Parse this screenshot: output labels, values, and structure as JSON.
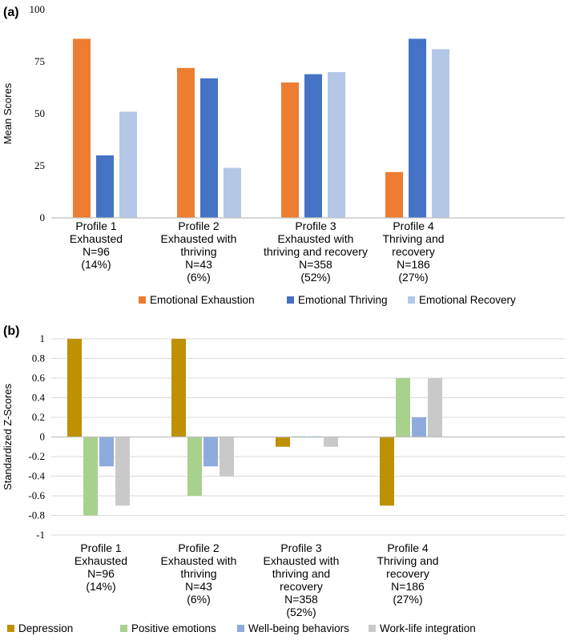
{
  "colors": {
    "emotional_exhaustion": "#ED7D31",
    "emotional_thriving": "#4472C4",
    "emotional_recovery": "#B4C7E7",
    "depression": "#BF9000",
    "positive_emotions": "#A9D18E",
    "well_being_behaviors": "#8FAADC",
    "work_life_integration": "#C9C9C9",
    "near_zero_mark": "#5BC8C8",
    "gridline": "#D9D9D9",
    "axis": "#BFBFBF"
  },
  "chart_data": [
    {
      "panel": "(a)",
      "type": "bar",
      "ylabel": "Mean Scores",
      "ylim": [
        0,
        100
      ],
      "yticks": [
        "0",
        "25",
        "50",
        "75",
        "100"
      ],
      "grid": false,
      "legend_position": "bottom",
      "categories": [
        [
          "Profile 1",
          "Exhausted",
          "N=96",
          "(14%)"
        ],
        [
          "Profile 2",
          "Exhausted with",
          "thriving",
          "N=43",
          "(6%)"
        ],
        [
          "Profile 3",
          "Exhausted with",
          "thriving and recovery",
          "N=358",
          "(52%)"
        ],
        [
          "Profile 4",
          "Thriving and",
          "recovery",
          "N=186",
          "(27%)"
        ]
      ],
      "series": [
        {
          "name": "Emotional Exhaustion",
          "color_key": "emotional_exhaustion",
          "values": [
            86,
            72,
            65,
            22
          ]
        },
        {
          "name": "Emotional Thriving",
          "color_key": "emotional_thriving",
          "values": [
            30,
            67,
            69,
            86
          ]
        },
        {
          "name": "Emotional Recovery",
          "color_key": "emotional_recovery",
          "values": [
            51,
            24,
            70,
            81
          ]
        }
      ]
    },
    {
      "panel": "(b)",
      "type": "bar",
      "ylabel": "Standardized Z-Scores",
      "ylim": [
        -1,
        1
      ],
      "yticks": [
        "1",
        "0.8",
        "0.6",
        "0.4",
        "0.2",
        "0",
        "-0.2",
        "-0.4",
        "-0.6",
        "-0.8",
        "-1"
      ],
      "grid": true,
      "legend_position": "bottom",
      "categories": [
        [
          "Profile 1",
          "Exhausted",
          "N=96",
          "(14%)"
        ],
        [
          "Profile 2",
          "Exhausted with",
          "thriving",
          "N=43",
          "(6%)"
        ],
        [
          "Profile 3",
          "Exhausted with",
          "thriving and",
          "recovery",
          "N=358",
          "(52%)"
        ],
        [
          "Profile 4",
          "Thriving and",
          "recovery",
          "N=186",
          "(27%)"
        ]
      ],
      "series": [
        {
          "name": "Depression",
          "color_key": "depression",
          "values": [
            1,
            1,
            -0.1,
            -0.7
          ]
        },
        {
          "name": "Positive emotions",
          "color_key": "positive_emotions",
          "values": [
            -0.8,
            -0.6,
            -0.01,
            0.6
          ]
        },
        {
          "name": "Well-being behaviors",
          "color_key": "well_being_behaviors",
          "values": [
            -0.3,
            -0.3,
            -0.01,
            0.2
          ]
        },
        {
          "name": "Work-life integration",
          "color_key": "work_life_integration",
          "values": [
            -0.7,
            -0.4,
            -0.1,
            0.6
          ]
        }
      ]
    }
  ]
}
